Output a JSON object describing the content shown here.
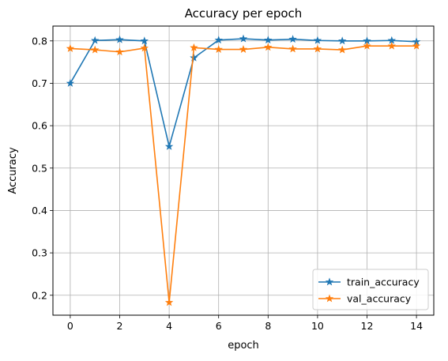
{
  "chart_data": {
    "type": "line",
    "title": "Accuracy per epoch",
    "xlabel": "epoch",
    "ylabel": "Accuracy",
    "xlim": [
      -0.7,
      14.7
    ],
    "ylim": [
      0.153,
      0.835
    ],
    "x_ticks": [
      0,
      2,
      4,
      6,
      8,
      10,
      12,
      14
    ],
    "y_ticks": [
      0.2,
      0.3,
      0.4,
      0.5,
      0.6,
      0.7,
      0.8
    ],
    "y_tick_labels": [
      "0.2",
      "0.3",
      "0.4",
      "0.5",
      "0.6",
      "0.7",
      "0.8"
    ],
    "grid": true,
    "legend_position": "bottom-right",
    "x": [
      0,
      1,
      2,
      3,
      4,
      5,
      6,
      7,
      8,
      9,
      10,
      11,
      12,
      13,
      14
    ],
    "series": [
      {
        "name": "train_accuracy",
        "color": "#1f77b4",
        "marker": "star",
        "values": [
          0.7,
          0.801,
          0.803,
          0.8,
          0.551,
          0.76,
          0.802,
          0.805,
          0.802,
          0.804,
          0.801,
          0.8,
          0.8,
          0.801,
          0.798
        ]
      },
      {
        "name": "val_accuracy",
        "color": "#ff7f0e",
        "marker": "star",
        "values": [
          0.782,
          0.779,
          0.774,
          0.783,
          0.183,
          0.784,
          0.78,
          0.78,
          0.785,
          0.781,
          0.781,
          0.779,
          0.788,
          0.788,
          0.788
        ]
      }
    ]
  }
}
